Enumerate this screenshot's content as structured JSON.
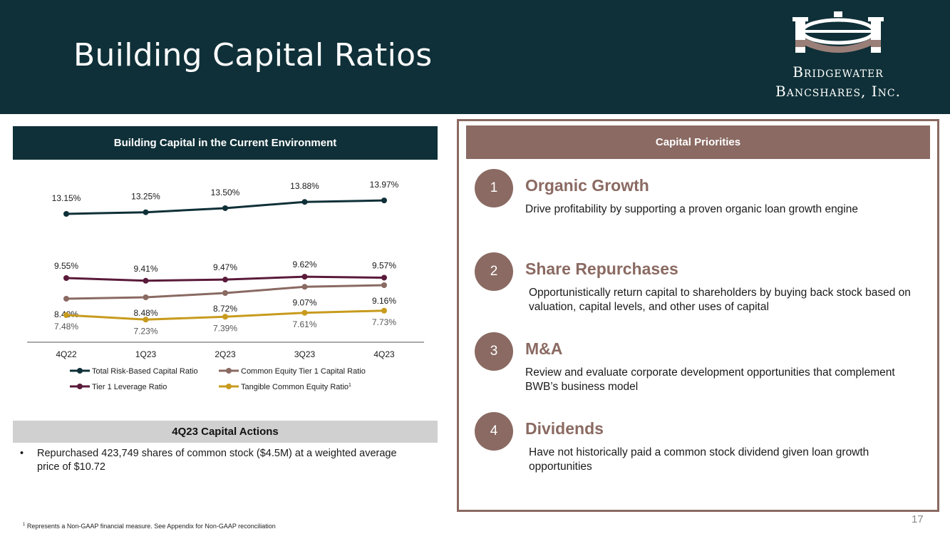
{
  "header": {
    "title": "Building Capital Ratios",
    "logo_line1": "Bridgewater",
    "logo_line2": "Bancshares, Inc."
  },
  "left": {
    "section_title": "Building Capital in the Current Environment",
    "actions_title": "4Q23 Capital Actions",
    "actions": [
      "Repurchased 423,749 shares of common stock ($4.5M) at a weighted average price of $10.72"
    ]
  },
  "chart_data": {
    "type": "line",
    "categories": [
      "4Q22",
      "1Q23",
      "2Q23",
      "3Q23",
      "4Q23"
    ],
    "series": [
      {
        "name": "Total Risk-Based Capital Ratio",
        "values": [
          13.15,
          13.25,
          13.5,
          13.88,
          13.97
        ],
        "labels": [
          "13.15%",
          "13.25%",
          "13.50%",
          "13.88%",
          "13.97%"
        ],
        "color": "#0f3038",
        "superscript": ""
      },
      {
        "name": "Common Equity Tier 1 Capital Ratio",
        "values": [
          8.4,
          8.48,
          8.72,
          9.07,
          9.16
        ],
        "labels": [
          "8.40%",
          "8.48%",
          "8.72%",
          "9.07%",
          "9.16%"
        ],
        "color": "#8a6a62",
        "superscript": ""
      },
      {
        "name": "Tier 1 Leverage Ratio",
        "values": [
          9.55,
          9.41,
          9.47,
          9.62,
          9.57
        ],
        "labels": [
          "9.55%",
          "9.41%",
          "9.47%",
          "9.62%",
          "9.57%"
        ],
        "color": "#5a1a3a",
        "superscript": ""
      },
      {
        "name": "Tangible Common Equity Ratio",
        "values": [
          7.48,
          7.23,
          7.39,
          7.61,
          7.73
        ],
        "labels": [
          "7.48%",
          "7.23%",
          "7.39%",
          "7.61%",
          "7.73%"
        ],
        "color": "#c89b1e",
        "superscript": "1"
      }
    ],
    "legend": "bottom"
  },
  "priorities": {
    "title": "Capital Priorities",
    "items": [
      {
        "number": "1",
        "title": "Organic Growth",
        "description": "Drive profitability by supporting a proven organic loan growth engine"
      },
      {
        "number": "2",
        "title": "Share Repurchases",
        "description": "Opportunistically return capital to shareholders by buying back stock based on valuation, capital levels, and other uses of capital"
      },
      {
        "number": "3",
        "title": "M&A",
        "description": "Review and evaluate corporate development opportunities that complement BWB’s business model"
      },
      {
        "number": "4",
        "title": "Dividends",
        "description": "Have not historically paid a common stock dividend given loan growth opportunities"
      }
    ]
  },
  "footer": {
    "footnote_mark": "1",
    "footnote": "Represents a Non-GAAP financial measure. See Appendix for Non-GAAP reconciliation",
    "page_number": "17"
  },
  "colors": {
    "navy": "#0f3038",
    "mauve": "#8a6a62",
    "plum": "#5a1a3a",
    "gold": "#c89b1e"
  }
}
